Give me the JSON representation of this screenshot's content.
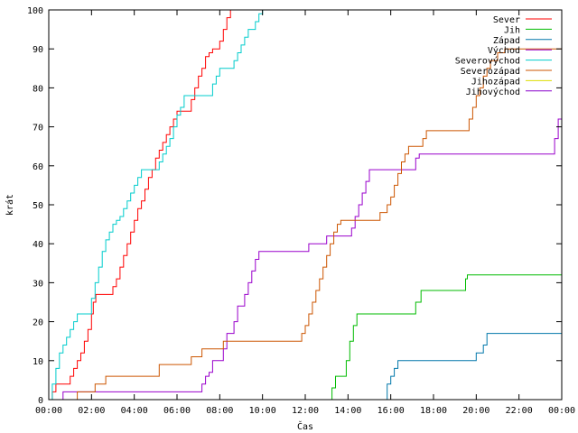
{
  "chart_data": {
    "type": "line",
    "title": "",
    "xlabel": "Čas",
    "ylabel": "krát",
    "x_domain": [
      "00:00",
      "24:00"
    ],
    "x_ticks": [
      "00:00",
      "02:00",
      "04:00",
      "06:00",
      "08:00",
      "10:00",
      "12:00",
      "14:00",
      "16:00",
      "18:00",
      "20:00",
      "22:00",
      "00:00"
    ],
    "ylim": [
      0,
      100
    ],
    "y_ticks": [
      0,
      10,
      20,
      30,
      40,
      50,
      60,
      70,
      80,
      90,
      100
    ],
    "grid": false,
    "legend_position": "top-right",
    "step": true,
    "series": [
      {
        "name": "Sever",
        "color": "#ff0000",
        "points": [
          [
            "00:00",
            0
          ],
          [
            "00:10",
            2
          ],
          [
            "00:20",
            4
          ],
          [
            "00:45",
            4
          ],
          [
            "01:00",
            6
          ],
          [
            "01:10",
            8
          ],
          [
            "01:20",
            10
          ],
          [
            "01:30",
            12
          ],
          [
            "01:40",
            15
          ],
          [
            "01:50",
            18
          ],
          [
            "02:00",
            22
          ],
          [
            "02:05",
            25
          ],
          [
            "02:12",
            27
          ],
          [
            "02:50",
            27
          ],
          [
            "03:00",
            29
          ],
          [
            "03:10",
            31
          ],
          [
            "03:20",
            34
          ],
          [
            "03:30",
            37
          ],
          [
            "03:40",
            40
          ],
          [
            "03:50",
            43
          ],
          [
            "04:00",
            46
          ],
          [
            "04:10",
            49
          ],
          [
            "04:20",
            51
          ],
          [
            "04:30",
            54
          ],
          [
            "04:40",
            57
          ],
          [
            "04:50",
            59
          ],
          [
            "05:00",
            62
          ],
          [
            "05:10",
            64
          ],
          [
            "05:20",
            66
          ],
          [
            "05:30",
            68
          ],
          [
            "05:40",
            70
          ],
          [
            "05:50",
            72
          ],
          [
            "06:00",
            74
          ],
          [
            "06:30",
            74
          ],
          [
            "06:40",
            77
          ],
          [
            "06:50",
            80
          ],
          [
            "07:00",
            83
          ],
          [
            "07:10",
            85
          ],
          [
            "07:20",
            88
          ],
          [
            "07:30",
            89
          ],
          [
            "07:40",
            90
          ],
          [
            "08:00",
            92
          ],
          [
            "08:10",
            95
          ],
          [
            "08:20",
            98
          ],
          [
            "08:30",
            100
          ],
          [
            "09:00",
            100
          ]
        ]
      },
      {
        "name": "Jih",
        "color": "#00bb00",
        "points": [
          [
            "00:00",
            0
          ],
          [
            "13:10",
            0
          ],
          [
            "13:15",
            3
          ],
          [
            "13:25",
            6
          ],
          [
            "13:45",
            6
          ],
          [
            "13:55",
            10
          ],
          [
            "14:05",
            15
          ],
          [
            "14:15",
            19
          ],
          [
            "14:25",
            22
          ],
          [
            "17:00",
            22
          ],
          [
            "17:10",
            25
          ],
          [
            "17:25",
            28
          ],
          [
            "19:20",
            28
          ],
          [
            "19:30",
            31
          ],
          [
            "19:35",
            32
          ],
          [
            "24:00",
            32
          ]
        ]
      },
      {
        "name": "Západ",
        "color": "#0077aa",
        "points": [
          [
            "00:00",
            0
          ],
          [
            "15:40",
            0
          ],
          [
            "15:50",
            4
          ],
          [
            "16:00",
            6
          ],
          [
            "16:10",
            8
          ],
          [
            "16:20",
            10
          ],
          [
            "19:50",
            10
          ],
          [
            "20:00",
            12
          ],
          [
            "20:20",
            14
          ],
          [
            "20:30",
            17
          ],
          [
            "24:00",
            17
          ]
        ]
      },
      {
        "name": "Východ",
        "color": "#9900cc",
        "points": [
          [
            "00:00",
            0
          ],
          [
            "00:40",
            2
          ],
          [
            "07:00",
            2
          ],
          [
            "07:10",
            4
          ],
          [
            "07:20",
            6
          ],
          [
            "07:30",
            7
          ],
          [
            "07:40",
            10
          ],
          [
            "08:00",
            10
          ],
          [
            "08:10",
            13
          ],
          [
            "08:20",
            17
          ],
          [
            "08:40",
            20
          ],
          [
            "08:50",
            24
          ],
          [
            "09:10",
            27
          ],
          [
            "09:20",
            30
          ],
          [
            "09:30",
            33
          ],
          [
            "09:40",
            36
          ],
          [
            "09:50",
            38
          ],
          [
            "12:00",
            38
          ],
          [
            "12:10",
            40
          ],
          [
            "12:50",
            40
          ],
          [
            "13:00",
            42
          ],
          [
            "14:00",
            42
          ],
          [
            "14:10",
            44
          ],
          [
            "14:20",
            47
          ],
          [
            "14:30",
            50
          ],
          [
            "14:40",
            53
          ],
          [
            "14:50",
            56
          ],
          [
            "15:00",
            59
          ],
          [
            "17:00",
            59
          ],
          [
            "17:10",
            62
          ],
          [
            "17:20",
            63
          ],
          [
            "23:30",
            63
          ],
          [
            "23:40",
            67
          ],
          [
            "23:50",
            72
          ],
          [
            "24:00",
            76
          ]
        ]
      },
      {
        "name": "Severovýchod",
        "color": "#00cccc",
        "points": [
          [
            "00:00",
            0
          ],
          [
            "00:10",
            4
          ],
          [
            "00:20",
            8
          ],
          [
            "00:30",
            12
          ],
          [
            "00:40",
            14
          ],
          [
            "00:50",
            16
          ],
          [
            "01:00",
            18
          ],
          [
            "01:10",
            20
          ],
          [
            "01:20",
            22
          ],
          [
            "01:50",
            22
          ],
          [
            "02:00",
            26
          ],
          [
            "02:10",
            30
          ],
          [
            "02:20",
            34
          ],
          [
            "02:30",
            38
          ],
          [
            "02:40",
            41
          ],
          [
            "02:50",
            43
          ],
          [
            "03:00",
            45
          ],
          [
            "03:10",
            46
          ],
          [
            "03:20",
            47
          ],
          [
            "03:30",
            49
          ],
          [
            "03:40",
            51
          ],
          [
            "03:50",
            53
          ],
          [
            "04:00",
            55
          ],
          [
            "04:10",
            57
          ],
          [
            "04:20",
            59
          ],
          [
            "05:00",
            59
          ],
          [
            "05:10",
            61
          ],
          [
            "05:20",
            63
          ],
          [
            "05:30",
            65
          ],
          [
            "05:40",
            67
          ],
          [
            "05:50",
            70
          ],
          [
            "06:00",
            73
          ],
          [
            "06:10",
            75
          ],
          [
            "06:20",
            78
          ],
          [
            "07:20",
            78
          ],
          [
            "07:40",
            81
          ],
          [
            "07:50",
            83
          ],
          [
            "08:00",
            85
          ],
          [
            "08:30",
            85
          ],
          [
            "08:40",
            87
          ],
          [
            "08:50",
            89
          ],
          [
            "09:00",
            91
          ],
          [
            "09:10",
            93
          ],
          [
            "09:20",
            95
          ],
          [
            "09:40",
            97
          ],
          [
            "09:50",
            99
          ],
          [
            "10:00",
            100
          ],
          [
            "10:20",
            100
          ]
        ]
      },
      {
        "name": "Severozápad",
        "color": "#cc5500",
        "points": [
          [
            "00:00",
            0
          ],
          [
            "01:10",
            0
          ],
          [
            "01:20",
            2
          ],
          [
            "02:00",
            2
          ],
          [
            "02:10",
            4
          ],
          [
            "02:30",
            4
          ],
          [
            "02:40",
            6
          ],
          [
            "05:00",
            6
          ],
          [
            "05:10",
            9
          ],
          [
            "06:30",
            9
          ],
          [
            "06:40",
            11
          ],
          [
            "07:00",
            11
          ],
          [
            "07:10",
            13
          ],
          [
            "08:00",
            13
          ],
          [
            "08:10",
            15
          ],
          [
            "11:40",
            15
          ],
          [
            "11:50",
            17
          ],
          [
            "12:00",
            19
          ],
          [
            "12:10",
            22
          ],
          [
            "12:20",
            25
          ],
          [
            "12:30",
            28
          ],
          [
            "12:40",
            31
          ],
          [
            "12:50",
            34
          ],
          [
            "13:00",
            37
          ],
          [
            "13:10",
            40
          ],
          [
            "13:20",
            43
          ],
          [
            "13:30",
            45
          ],
          [
            "13:40",
            46
          ],
          [
            "15:20",
            46
          ],
          [
            "15:30",
            48
          ],
          [
            "15:50",
            50
          ],
          [
            "16:00",
            52
          ],
          [
            "16:10",
            55
          ],
          [
            "16:20",
            58
          ],
          [
            "16:30",
            61
          ],
          [
            "16:40",
            63
          ],
          [
            "16:50",
            65
          ],
          [
            "17:20",
            65
          ],
          [
            "17:30",
            67
          ],
          [
            "17:40",
            69
          ],
          [
            "19:30",
            69
          ],
          [
            "19:40",
            72
          ],
          [
            "19:50",
            75
          ],
          [
            "20:00",
            78
          ],
          [
            "20:10",
            80
          ],
          [
            "20:20",
            83
          ],
          [
            "20:30",
            85
          ],
          [
            "20:40",
            87
          ],
          [
            "21:00",
            89
          ],
          [
            "21:20",
            90
          ],
          [
            "24:00",
            90
          ]
        ]
      },
      {
        "name": "Jihozápad",
        "color": "#dddd00",
        "points": []
      },
      {
        "name": "Jihovýchod",
        "color": "#8800cc",
        "points": []
      }
    ]
  }
}
